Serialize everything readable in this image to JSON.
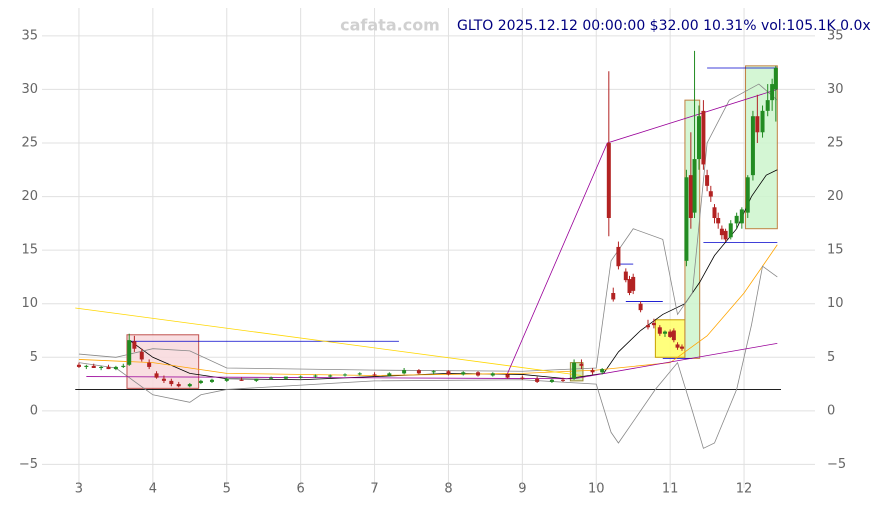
{
  "chart_data": {
    "type": "candlestick",
    "title": "GLTO 2025.12.12 00:00:00 $32.00 10.31% vol:105.1K 0.0x",
    "watermark": "cafata.com",
    "xlim": [
      2.5,
      12.96
    ],
    "ylim": [
      -7.2,
      37.6
    ],
    "xticks": [
      3,
      4,
      5,
      6,
      7,
      8,
      9,
      10,
      11,
      12
    ],
    "yticks": [
      {
        "value": -5,
        "label": "−5"
      },
      0,
      5,
      10,
      15,
      20,
      25,
      30,
      35
    ],
    "grid": true,
    "up_color": "#228b22",
    "down_color": "#b22222",
    "candles": [
      {
        "x": 3.0,
        "o": 4.3,
        "h": 4.5,
        "l": 4.0,
        "c": 4.1
      },
      {
        "x": 3.1,
        "o": 4.1,
        "h": 4.3,
        "l": 3.9,
        "c": 4.2
      },
      {
        "x": 3.2,
        "o": 4.2,
        "h": 4.4,
        "l": 4.0,
        "c": 4.0
      },
      {
        "x": 3.3,
        "o": 4.0,
        "h": 4.2,
        "l": 3.8,
        "c": 4.1
      },
      {
        "x": 3.4,
        "o": 4.1,
        "h": 4.3,
        "l": 3.9,
        "c": 3.9
      },
      {
        "x": 3.5,
        "o": 3.9,
        "h": 4.2,
        "l": 3.8,
        "c": 4.1
      },
      {
        "x": 3.6,
        "o": 4.1,
        "h": 4.4,
        "l": 4.0,
        "c": 4.2
      },
      {
        "x": 3.68,
        "o": 4.3,
        "h": 7.2,
        "l": 4.2,
        "c": 6.6
      },
      {
        "x": 3.75,
        "o": 6.5,
        "h": 7.0,
        "l": 5.5,
        "c": 5.8
      },
      {
        "x": 3.85,
        "o": 5.5,
        "h": 5.8,
        "l": 4.6,
        "c": 4.8
      },
      {
        "x": 3.95,
        "o": 4.5,
        "h": 4.8,
        "l": 3.9,
        "c": 4.1
      },
      {
        "x": 4.05,
        "o": 3.5,
        "h": 3.7,
        "l": 3.0,
        "c": 3.1
      },
      {
        "x": 4.15,
        "o": 3.0,
        "h": 3.3,
        "l": 2.6,
        "c": 2.8
      },
      {
        "x": 4.25,
        "o": 2.8,
        "h": 3.0,
        "l": 2.3,
        "c": 2.5
      },
      {
        "x": 4.35,
        "o": 2.5,
        "h": 2.7,
        "l": 2.2,
        "c": 2.3
      },
      {
        "x": 4.5,
        "o": 2.3,
        "h": 2.6,
        "l": 2.2,
        "c": 2.5
      },
      {
        "x": 4.65,
        "o": 2.6,
        "h": 2.9,
        "l": 2.5,
        "c": 2.8
      },
      {
        "x": 4.8,
        "o": 2.7,
        "h": 3.0,
        "l": 2.6,
        "c": 2.9
      },
      {
        "x": 5.0,
        "o": 2.8,
        "h": 3.1,
        "l": 2.7,
        "c": 3.0
      },
      {
        "x": 5.2,
        "o": 2.9,
        "h": 3.1,
        "l": 2.8,
        "c": 2.8
      },
      {
        "x": 5.4,
        "o": 2.8,
        "h": 3.0,
        "l": 2.7,
        "c": 3.0
      },
      {
        "x": 5.6,
        "o": 3.0,
        "h": 3.2,
        "l": 2.9,
        "c": 3.1
      },
      {
        "x": 5.8,
        "o": 3.0,
        "h": 3.2,
        "l": 2.9,
        "c": 3.2
      },
      {
        "x": 6.0,
        "o": 3.1,
        "h": 3.3,
        "l": 3.0,
        "c": 3.2
      },
      {
        "x": 6.2,
        "o": 3.2,
        "h": 3.4,
        "l": 3.1,
        "c": 3.3
      },
      {
        "x": 6.4,
        "o": 3.2,
        "h": 3.4,
        "l": 3.1,
        "c": 3.3
      },
      {
        "x": 6.6,
        "o": 3.3,
        "h": 3.5,
        "l": 3.2,
        "c": 3.4
      },
      {
        "x": 6.8,
        "o": 3.4,
        "h": 3.6,
        "l": 3.3,
        "c": 3.5
      },
      {
        "x": 7.0,
        "o": 3.4,
        "h": 3.6,
        "l": 3.2,
        "c": 3.3
      },
      {
        "x": 7.2,
        "o": 3.3,
        "h": 3.6,
        "l": 3.2,
        "c": 3.5
      },
      {
        "x": 7.4,
        "o": 3.5,
        "h": 4.0,
        "l": 3.4,
        "c": 3.8
      },
      {
        "x": 7.6,
        "o": 3.8,
        "h": 3.9,
        "l": 3.4,
        "c": 3.5
      },
      {
        "x": 7.8,
        "o": 3.6,
        "h": 3.8,
        "l": 3.4,
        "c": 3.7
      },
      {
        "x": 8.0,
        "o": 3.7,
        "h": 3.8,
        "l": 3.3,
        "c": 3.4
      },
      {
        "x": 8.2,
        "o": 3.4,
        "h": 3.7,
        "l": 3.3,
        "c": 3.6
      },
      {
        "x": 8.4,
        "o": 3.6,
        "h": 3.7,
        "l": 3.2,
        "c": 3.3
      },
      {
        "x": 8.6,
        "o": 3.3,
        "h": 3.6,
        "l": 3.2,
        "c": 3.5
      },
      {
        "x": 8.8,
        "o": 3.4,
        "h": 3.5,
        "l": 3.0,
        "c": 3.1
      },
      {
        "x": 9.0,
        "o": 3.1,
        "h": 3.3,
        "l": 2.9,
        "c": 3.0
      },
      {
        "x": 9.2,
        "o": 3.0,
        "h": 3.2,
        "l": 2.6,
        "c": 2.7
      },
      {
        "x": 9.4,
        "o": 2.7,
        "h": 3.0,
        "l": 2.6,
        "c": 2.9
      },
      {
        "x": 9.55,
        "o": 2.9,
        "h": 3.1,
        "l": 2.7,
        "c": 2.8
      },
      {
        "x": 9.7,
        "o": 3.0,
        "h": 4.8,
        "l": 2.9,
        "c": 4.5
      },
      {
        "x": 9.8,
        "o": 4.4,
        "h": 4.8,
        "l": 3.9,
        "c": 4.2
      },
      {
        "x": 9.95,
        "o": 3.8,
        "h": 4.0,
        "l": 3.4,
        "c": 3.6
      },
      {
        "x": 10.08,
        "o": 3.6,
        "h": 4.0,
        "l": 3.4,
        "c": 3.9
      },
      {
        "x": 10.17,
        "o": 25.0,
        "h": 31.7,
        "l": 16.3,
        "c": 18.0
      },
      {
        "x": 10.23,
        "o": 11.0,
        "h": 11.5,
        "l": 10.2,
        "c": 10.4
      },
      {
        "x": 10.3,
        "o": 15.3,
        "h": 15.8,
        "l": 13.2,
        "c": 13.5
      },
      {
        "x": 10.4,
        "o": 13.0,
        "h": 13.3,
        "l": 12.0,
        "c": 12.2
      },
      {
        "x": 10.45,
        "o": 12.3,
        "h": 12.6,
        "l": 10.8,
        "c": 11.0
      },
      {
        "x": 10.5,
        "o": 12.5,
        "h": 12.8,
        "l": 10.9,
        "c": 11.2
      },
      {
        "x": 10.6,
        "o": 10.0,
        "h": 10.2,
        "l": 9.2,
        "c": 9.4
      },
      {
        "x": 10.7,
        "o": 8.0,
        "h": 8.5,
        "l": 7.6,
        "c": 7.8
      },
      {
        "x": 10.78,
        "o": 8.2,
        "h": 8.6,
        "l": 7.7,
        "c": 8.0
      },
      {
        "x": 10.86,
        "o": 7.8,
        "h": 8.0,
        "l": 7.0,
        "c": 7.2
      },
      {
        "x": 10.93,
        "o": 7.2,
        "h": 7.5,
        "l": 6.9,
        "c": 7.4
      },
      {
        "x": 11.0,
        "o": 7.4,
        "h": 7.6,
        "l": 6.8,
        "c": 6.9
      },
      {
        "x": 11.05,
        "o": 7.5,
        "h": 7.7,
        "l": 6.4,
        "c": 6.6
      },
      {
        "x": 11.1,
        "o": 6.2,
        "h": 6.4,
        "l": 5.7,
        "c": 5.9
      },
      {
        "x": 11.16,
        "o": 6.0,
        "h": 6.2,
        "l": 5.6,
        "c": 5.8
      },
      {
        "x": 11.22,
        "o": 14.0,
        "h": 22.5,
        "l": 13.5,
        "c": 21.8
      },
      {
        "x": 11.28,
        "o": 22.0,
        "h": 26.0,
        "l": 17.0,
        "c": 18.0
      },
      {
        "x": 11.33,
        "o": 18.5,
        "h": 33.6,
        "l": 18.0,
        "c": 23.5
      },
      {
        "x": 11.39,
        "o": 23.5,
        "h": 28.5,
        "l": 22.5,
        "c": 27.5
      },
      {
        "x": 11.45,
        "o": 28.0,
        "h": 29.0,
        "l": 22.5,
        "c": 23.0
      },
      {
        "x": 11.5,
        "o": 22.0,
        "h": 22.5,
        "l": 20.5,
        "c": 21.0
      },
      {
        "x": 11.55,
        "o": 20.5,
        "h": 21.0,
        "l": 19.5,
        "c": 20.0
      },
      {
        "x": 11.6,
        "o": 19.0,
        "h": 19.3,
        "l": 17.5,
        "c": 18.0
      },
      {
        "x": 11.65,
        "o": 18.0,
        "h": 18.5,
        "l": 17.0,
        "c": 17.5
      },
      {
        "x": 11.7,
        "o": 17.0,
        "h": 17.3,
        "l": 16.0,
        "c": 16.4
      },
      {
        "x": 11.75,
        "o": 16.8,
        "h": 17.0,
        "l": 15.8,
        "c": 16.0
      },
      {
        "x": 11.82,
        "o": 16.2,
        "h": 17.8,
        "l": 16.0,
        "c": 17.5
      },
      {
        "x": 11.9,
        "o": 17.5,
        "h": 18.5,
        "l": 17.0,
        "c": 18.2
      },
      {
        "x": 11.97,
        "o": 17.5,
        "h": 19.0,
        "l": 17.0,
        "c": 18.8
      },
      {
        "x": 12.05,
        "o": 18.5,
        "h": 22.0,
        "l": 18.0,
        "c": 21.8
      },
      {
        "x": 12.12,
        "o": 22.0,
        "h": 28.0,
        "l": 21.5,
        "c": 27.5
      },
      {
        "x": 12.18,
        "o": 27.5,
        "h": 29.5,
        "l": 25.0,
        "c": 26.0
      },
      {
        "x": 12.25,
        "o": 26.0,
        "h": 28.5,
        "l": 25.5,
        "c": 28.0
      },
      {
        "x": 12.32,
        "o": 28.0,
        "h": 30.5,
        "l": 27.5,
        "c": 29.0
      },
      {
        "x": 12.38,
        "o": 29.0,
        "h": 31.0,
        "l": 28.0,
        "c": 30.5
      },
      {
        "x": 12.43,
        "o": 30.0,
        "h": 32.2,
        "l": 27.0,
        "c": 32.0
      }
    ],
    "zones": [
      {
        "x": [
          3.65,
          4.62
        ],
        "y": [
          2.1,
          7.1
        ],
        "fill": "#f8d8dc",
        "stroke": "#c0504d"
      },
      {
        "x": [
          9.65,
          9.82
        ],
        "y": [
          2.8,
          4.5
        ],
        "fill": "#cfe8b0",
        "stroke": "#9a8a30"
      },
      {
        "x": [
          10.8,
          11.2
        ],
        "y": [
          5.0,
          8.5
        ],
        "fill": "#ffff66",
        "stroke": "#c8a000"
      },
      {
        "x": [
          11.2,
          11.4
        ],
        "y": [
          4.9,
          29.0
        ],
        "fill": "#ccf5cc",
        "stroke": "#c08040"
      },
      {
        "x": [
          12.02,
          12.45
        ],
        "y": [
          17.0,
          32.2
        ],
        "fill": "#ccf5cc",
        "stroke": "#c08040"
      }
    ],
    "hlines": [
      {
        "x": [
          3.7,
          7.33
        ],
        "y": 6.5,
        "color": "#0000cc"
      },
      {
        "x": [
          11.5,
          12.45
        ],
        "y": 32.0,
        "color": "#0000cc"
      },
      {
        "x": [
          11.45,
          12.45
        ],
        "y": 15.7,
        "color": "#0000cc"
      },
      {
        "x": [
          10.3,
          10.5
        ],
        "y": 13.7,
        "color": "#0000cc"
      },
      {
        "x": [
          10.4,
          10.9
        ],
        "y": 10.2,
        "color": "#0000cc"
      },
      {
        "x": [
          10.9,
          11.3
        ],
        "y": 4.9,
        "color": "#0000cc"
      },
      {
        "x": [
          2.95,
          12.5
        ],
        "y": 2.0,
        "color": "#000000"
      }
    ],
    "lines": [
      {
        "color": "#000000",
        "x": [
          3.7,
          4,
          4.5,
          5,
          6,
          7,
          8,
          9,
          9.6,
          10.1,
          10.3,
          10.6,
          10.9,
          11.2,
          11.4,
          11.6,
          11.9,
          12.1,
          12.3,
          12.45
        ],
        "values": [
          6.5,
          5,
          3.5,
          3,
          2.9,
          3.2,
          3.5,
          3.4,
          3,
          3.5,
          5.5,
          7.5,
          9,
          10,
          12,
          14.5,
          17,
          20,
          22,
          22.5
        ]
      },
      {
        "color": "#ffa500",
        "x": [
          3,
          4,
          5,
          7,
          9,
          10,
          11,
          11.5,
          12,
          12.45
        ],
        "values": [
          4.8,
          4.5,
          3.5,
          3.3,
          3.5,
          3.8,
          4.5,
          7,
          11,
          15.5
        ]
      },
      {
        "color": "#888888",
        "x": [
          3,
          3.5,
          4,
          4.5,
          5,
          7,
          9,
          10,
          10.2,
          10.5,
          10.9,
          11.1,
          11.3,
          11.5,
          11.8,
          12.2,
          12.45
        ],
        "values": [
          5.3,
          5,
          5.8,
          5.6,
          4,
          3.8,
          3.7,
          4,
          14,
          17,
          16,
          9,
          11,
          25,
          29,
          30.5,
          29
        ]
      },
      {
        "color": "#888888",
        "x": [
          3,
          3.5,
          4,
          4.5,
          4.65,
          5,
          7,
          9,
          10,
          10.2,
          10.3,
          10.5,
          10.8,
          11.1,
          11.3,
          11.45,
          11.6,
          11.9,
          12.1,
          12.25,
          12.45
        ],
        "values": [
          4.5,
          4,
          1.5,
          0.8,
          1.5,
          2,
          2.8,
          2.9,
          2.5,
          -2,
          -3,
          -1,
          2,
          4.5,
          0,
          -3.5,
          -3,
          2,
          8,
          13.5,
          12.5
        ]
      },
      {
        "color": "#ffd700",
        "x": [
          2.95,
          9.8
        ],
        "values": [
          9.6,
          3.3
        ]
      },
      {
        "color": "#990099",
        "x": [
          8.8,
          10.15,
          12.45
        ],
        "values": [
          3.5,
          25,
          30
        ]
      },
      {
        "color": "#990099",
        "x": [
          3.1,
          9.7,
          12.45
        ],
        "values": [
          3.2,
          3.0,
          6.3
        ]
      }
    ]
  }
}
